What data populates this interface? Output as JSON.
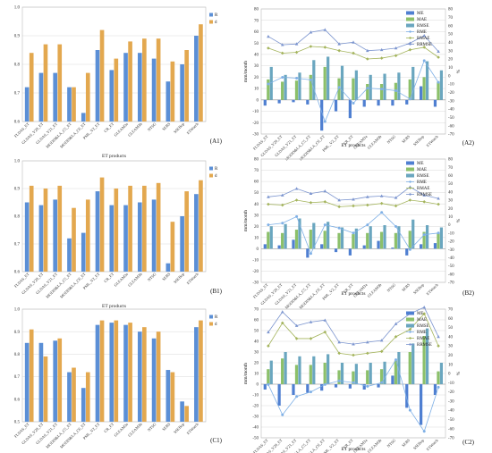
{
  "colors": {
    "R": "#5b8fd6",
    "d": "#e3a84f",
    "ME": "#4f7fd1",
    "MAE": "#8cc06a",
    "RMSE": "#6aa6bf",
    "RME": "#7fb0e6",
    "RMAE": "#a4b45c",
    "RRMSE": "#7c95cf"
  },
  "chart_data": [
    {
      "panel": "A1",
      "type": "bar",
      "xlabel": "ET products",
      "ylim": [
        0.6,
        1.0
      ],
      "yticks": [
        "0.6",
        "0.7",
        "0.8",
        "0.9",
        "1.0"
      ],
      "categories": [
        "FLDAS_ET",
        "GLDAS_V20_ET",
        "GLDAS_V21_ET",
        "MODIS&LA_C5_ET",
        "MODIS&LA_C6_ET",
        "PML_V2_ET",
        "CR_ET",
        "GLEAM3a",
        "GLEAM3b",
        "NTSG",
        "SEBS",
        "SSEBop",
        "ETWatch"
      ],
      "series": [
        {
          "name": "R",
          "values": [
            0.72,
            0.77,
            0.77,
            0.72,
            0.63,
            0.85,
            0.78,
            0.84,
            0.84,
            0.82,
            0.74,
            0.8,
            0.9
          ]
        },
        {
          "name": "d",
          "values": [
            0.84,
            0.87,
            0.87,
            0.72,
            0.77,
            0.92,
            0.82,
            0.88,
            0.89,
            0.89,
            0.81,
            0.85,
            0.94
          ]
        }
      ]
    },
    {
      "panel": "A2",
      "type": "bar+line",
      "xlabel": "ET products",
      "ylabel_left": "mm/month",
      "ylabel_right": "%",
      "ylim_left": [
        -30,
        80
      ],
      "ylim_right": [
        -70,
        80
      ],
      "yticks_left": [
        "-30",
        "-20",
        "-10",
        "0",
        "10",
        "20",
        "30",
        "40",
        "50",
        "60",
        "70",
        "80"
      ],
      "yticks_right": [
        "-70",
        "-60",
        "-50",
        "-40",
        "-30",
        "-20",
        "-10",
        "0",
        "10",
        "20",
        "30",
        "40",
        "50",
        "60",
        "70",
        "80"
      ],
      "categories": [
        "FLDAS_ET",
        "GLDAS_V20_ET",
        "GLDAS_V21_ET",
        "MODIS&LA_C5_ET",
        "MODIS&LA_C6_ET",
        "PML_V2_ET",
        "CR_ET",
        "GLEAM3a",
        "GLEAM3b",
        "NTSG",
        "SEBS",
        "SSEBop",
        "ETWatch"
      ],
      "bar_series": [
        {
          "name": "ME",
          "values": [
            -5,
            -3,
            -2,
            -4,
            -27,
            -10,
            -16,
            -6,
            -5,
            -5,
            -4,
            12,
            -6
          ]
        },
        {
          "name": "MAE",
          "values": [
            18,
            16,
            17,
            22,
            29,
            19,
            19,
            14,
            14,
            15,
            18,
            20,
            16
          ]
        },
        {
          "name": "RMSE",
          "values": [
            29,
            22,
            24,
            35,
            38,
            30,
            26,
            22,
            23,
            24,
            29,
            34,
            26
          ]
        }
      ],
      "line_series": [
        {
          "name": "RME",
          "values": [
            -10,
            -2,
            -3,
            -5,
            -55,
            -14,
            -33,
            -15,
            -16,
            -18,
            -28,
            18,
            -8
          ]
        },
        {
          "name": "RMAE",
          "values": [
            33,
            27,
            28,
            35,
            34,
            30,
            27,
            20,
            21,
            24,
            31,
            34,
            22
          ]
        },
        {
          "name": "RRMSE",
          "values": [
            47,
            37,
            38,
            52,
            55,
            38,
            40,
            30,
            31,
            33,
            39,
            48,
            29
          ]
        }
      ]
    },
    {
      "panel": "B1",
      "type": "bar",
      "xlabel": "ET products",
      "ylim": [
        0.6,
        1.0
      ],
      "yticks": [
        "0.6",
        "0.7",
        "0.8",
        "0.9",
        "1.0"
      ],
      "categories": [
        "FLDAS_ET",
        "GLDAS_V20_ET",
        "GLDAS_V21_ET",
        "MODIS&LA_C5_ET",
        "MODIS&LA_C6_ET",
        "PML_V2_ET",
        "CR_ET",
        "GLEAM3a",
        "GLEAM3b",
        "NTSG",
        "SEBS",
        "SSEBop",
        "ETWatch"
      ],
      "series": [
        {
          "name": "R",
          "values": [
            0.85,
            0.84,
            0.86,
            0.72,
            0.74,
            0.89,
            0.84,
            0.84,
            0.85,
            0.86,
            0.63,
            0.8,
            0.88
          ]
        },
        {
          "name": "d",
          "values": [
            0.91,
            0.9,
            0.91,
            0.83,
            0.86,
            0.94,
            0.9,
            0.91,
            0.91,
            0.92,
            0.78,
            0.89,
            0.93
          ]
        }
      ]
    },
    {
      "panel": "B2",
      "type": "bar+line",
      "xlabel": "ET products",
      "ylabel_left": "mm/month",
      "ylabel_right": "%",
      "ylim_left": [
        -30,
        80
      ],
      "ylim_right": [
        -70,
        80
      ],
      "yticks_left": [
        "-30",
        "-20",
        "-10",
        "0",
        "10",
        "20",
        "30",
        "40",
        "50",
        "60",
        "70",
        "80"
      ],
      "yticks_right": [
        "-70",
        "-60",
        "-50",
        "-40",
        "-30",
        "-20",
        "-10",
        "0",
        "10",
        "20",
        "30",
        "40",
        "50",
        "60",
        "70",
        "80"
      ],
      "categories": [
        "FLDAS_ET",
        "GLDAS_V20_ET",
        "GLDAS_V21_ET",
        "MODIS&LA_C5_ET",
        "MODIS&LA_C6_ET",
        "PML_V2_ET",
        "CR_ET",
        "GLEAM3a",
        "GLEAM3b",
        "NTSG",
        "SEBS",
        "SSEBop",
        "ETWatch"
      ],
      "bar_series": [
        {
          "name": "ME",
          "values": [
            4,
            3,
            8,
            -8,
            4,
            -3,
            -6,
            3,
            7,
            1,
            -6,
            4,
            5
          ]
        },
        {
          "name": "MAE",
          "values": [
            15,
            14,
            17,
            17,
            16,
            14,
            13,
            14,
            15,
            14,
            16,
            15,
            14
          ]
        },
        {
          "name": "RMSE",
          "values": [
            20,
            22,
            27,
            23,
            24,
            19,
            18,
            20,
            21,
            20,
            26,
            21,
            19
          ]
        }
      ],
      "line_series": [
        {
          "name": "RME",
          "values": [
            0,
            2,
            10,
            -35,
            0,
            -4,
            -10,
            0,
            15,
            -2,
            -30,
            -12,
            -10
          ]
        },
        {
          "name": "RMAE",
          "values": [
            25,
            24,
            30,
            27,
            28,
            22,
            23,
            24,
            26,
            23,
            30,
            28,
            25
          ]
        },
        {
          "name": "RRMSE",
          "values": [
            34,
            36,
            44,
            38,
            41,
            30,
            31,
            34,
            35,
            33,
            46,
            36,
            32
          ]
        }
      ]
    },
    {
      "panel": "C1",
      "type": "bar",
      "xlabel": "ET products",
      "ylim": [
        0.5,
        1.0
      ],
      "yticks": [
        "0.5",
        "0.6",
        "0.7",
        "0.8",
        "0.9",
        "1.0"
      ],
      "categories": [
        "FLDAS_ET",
        "GLDAS_V20_ET",
        "GLDAS_V21_ET",
        "MODIS&LA_C5_ET",
        "MODIS&LA_C6_ET",
        "PML_V2_ET",
        "CR_ET",
        "GLEAM3a",
        "GLEAM3b",
        "NTSG",
        "SEBS",
        "SSEBop",
        "ETWatch"
      ],
      "series": [
        {
          "name": "R",
          "values": [
            0.85,
            0.85,
            0.86,
            0.72,
            0.65,
            0.93,
            0.94,
            0.93,
            0.9,
            0.87,
            0.73,
            0.59,
            0.92
          ]
        },
        {
          "name": "d",
          "values": [
            0.91,
            0.79,
            0.87,
            0.74,
            0.72,
            0.95,
            0.95,
            0.94,
            0.92,
            0.9,
            0.72,
            0.57,
            0.95
          ]
        }
      ]
    },
    {
      "panel": "C2",
      "type": "bar+line",
      "xlabel": "ET products",
      "ylabel_left": "mm/month",
      "ylabel_right": "%",
      "ylim_left": [
        -50,
        70
      ],
      "ylim_right": [
        -70,
        70
      ],
      "yticks_left": [
        "-50",
        "-40",
        "-30",
        "-20",
        "-10",
        "0",
        "10",
        "20",
        "30",
        "40",
        "50",
        "60",
        "70"
      ],
      "yticks_right": [
        "-70",
        "-60",
        "-50",
        "-40",
        "-30",
        "-20",
        "-10",
        "0",
        "10",
        "20",
        "30",
        "40",
        "50",
        "60",
        "70"
      ],
      "categories": [
        "FLDAS_ET",
        "GLDAS_V20_ET",
        "GLDAS_V21_ET",
        "MODIS&LA_C5_ET",
        "MODIS&LA_C6_ET",
        "PML_V2_ET",
        "CR_ET",
        "GLEAM3a",
        "GLEAM3b",
        "NTSG",
        "SEBS",
        "SSEBop",
        "ETWatch"
      ],
      "bar_series": [
        {
          "name": "ME",
          "values": [
            -5,
            -20,
            -10,
            -8,
            -6,
            -3,
            -4,
            -5,
            -3,
            8,
            -22,
            -38,
            -10
          ]
        },
        {
          "name": "MAE",
          "values": [
            14,
            24,
            18,
            18,
            20,
            13,
            12,
            13,
            14,
            22,
            30,
            45,
            12
          ]
        },
        {
          "name": "RMSE",
          "values": [
            22,
            30,
            26,
            26,
            28,
            20,
            19,
            20,
            21,
            30,
            38,
            52,
            20
          ]
        }
      ],
      "line_series": [
        {
          "name": "RME",
          "values": [
            -12,
            -45,
            -25,
            -20,
            -12,
            -8,
            -10,
            -14,
            -10,
            15,
            -40,
            -63,
            -15
          ]
        },
        {
          "name": "RMAE",
          "values": [
            30,
            55,
            38,
            38,
            45,
            22,
            20,
            22,
            24,
            40,
            48,
            65,
            30
          ]
        },
        {
          "name": "RRMSE",
          "values": [
            45,
            67,
            52,
            56,
            58,
            34,
            32,
            34,
            36,
            54,
            65,
            72,
            40
          ]
        }
      ]
    }
  ]
}
